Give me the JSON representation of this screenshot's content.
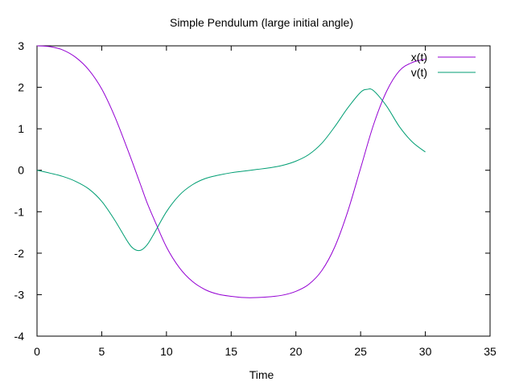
{
  "chart_data": {
    "type": "line",
    "title": "Simple Pendulum (large initial angle)",
    "xlabel": "Time",
    "ylabel": "",
    "xlim": [
      0,
      35
    ],
    "ylim": [
      -4,
      3
    ],
    "xticks": [
      0,
      5,
      10,
      15,
      20,
      25,
      30,
      35
    ],
    "yticks": [
      -4,
      -3,
      -2,
      -1,
      0,
      1,
      2,
      3
    ],
    "grid": false,
    "legend_position": "top-right",
    "series": [
      {
        "name": "x(t)",
        "color": "#9400d3",
        "x": [
          0,
          1,
          2,
          3,
          4,
          5,
          6,
          7,
          7.5,
          8,
          8.5,
          9,
          10,
          11,
          12,
          13,
          14,
          15,
          16,
          17,
          18,
          19,
          20,
          21,
          22,
          23,
          24,
          25,
          26,
          27,
          28,
          29,
          30
        ],
        "y": [
          3.0,
          2.98,
          2.9,
          2.72,
          2.42,
          1.96,
          1.3,
          0.5,
          0.08,
          -0.35,
          -0.78,
          -1.15,
          -1.85,
          -2.35,
          -2.68,
          -2.88,
          -2.99,
          -3.04,
          -3.07,
          -3.07,
          -3.05,
          -3.01,
          -2.92,
          -2.75,
          -2.42,
          -1.85,
          -1.0,
          0.05,
          1.1,
          1.9,
          2.4,
          2.6,
          2.68
        ]
      },
      {
        "name": "v(t)",
        "color": "#009e73",
        "x": [
          0,
          1,
          2,
          3,
          4,
          5,
          6,
          7,
          7.5,
          8,
          8.5,
          9,
          10,
          11,
          12,
          13,
          14,
          15,
          16,
          17,
          18,
          19,
          20,
          21,
          22,
          23,
          24,
          25,
          25.5,
          26,
          27,
          28,
          29,
          30
        ],
        "y": [
          0.0,
          -0.07,
          -0.15,
          -0.27,
          -0.45,
          -0.75,
          -1.2,
          -1.72,
          -1.9,
          -1.93,
          -1.8,
          -1.55,
          -1.0,
          -0.6,
          -0.35,
          -0.2,
          -0.12,
          -0.06,
          -0.02,
          0.02,
          0.06,
          0.12,
          0.22,
          0.38,
          0.65,
          1.05,
          1.5,
          1.88,
          1.95,
          1.92,
          1.55,
          1.05,
          0.68,
          0.44
        ]
      }
    ]
  }
}
